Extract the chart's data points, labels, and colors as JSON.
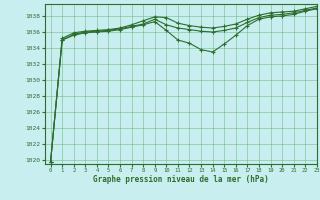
{
  "xlabel": "Graphe pression niveau de la mer (hPa)",
  "background_color": "#c8eef0",
  "grid_color": "#5aaa6e",
  "line_color": "#2d6e2d",
  "marker_color": "#2d6e2d",
  "ylim": [
    1019.5,
    1039.5
  ],
  "xlim": [
    -0.5,
    23
  ],
  "yticks": [
    1020,
    1022,
    1024,
    1026,
    1028,
    1030,
    1032,
    1034,
    1036,
    1038
  ],
  "xticks": [
    0,
    1,
    2,
    3,
    4,
    5,
    6,
    7,
    8,
    9,
    10,
    11,
    12,
    13,
    14,
    15,
    16,
    17,
    18,
    19,
    20,
    21,
    22,
    23
  ],
  "hours": [
    0,
    1,
    2,
    3,
    4,
    5,
    6,
    7,
    8,
    9,
    10,
    11,
    12,
    13,
    14,
    15,
    16,
    17,
    18,
    19,
    20,
    21,
    22,
    23
  ],
  "pressure_top": [
    1019.8,
    1035.2,
    1035.9,
    1036.1,
    1036.2,
    1036.3,
    1036.5,
    1036.9,
    1037.4,
    1037.9,
    1037.8,
    1037.1,
    1036.8,
    1036.6,
    1036.5,
    1036.7,
    1037.0,
    1037.6,
    1038.1,
    1038.4,
    1038.5,
    1038.6,
    1038.9,
    1039.2
  ],
  "pressure_mid": [
    1019.8,
    1035.0,
    1035.7,
    1036.0,
    1036.1,
    1036.2,
    1036.4,
    1036.7,
    1037.0,
    1037.6,
    1036.9,
    1036.5,
    1036.3,
    1036.1,
    1036.0,
    1036.2,
    1036.5,
    1037.2,
    1037.8,
    1038.1,
    1038.2,
    1038.4,
    1038.7,
    1039.0
  ],
  "pressure_bot": [
    1019.8,
    1035.0,
    1035.6,
    1035.9,
    1036.0,
    1036.1,
    1036.3,
    1036.6,
    1036.9,
    1037.3,
    1036.2,
    1035.0,
    1034.6,
    1033.8,
    1033.5,
    1034.5,
    1035.6,
    1036.8,
    1037.6,
    1037.9,
    1038.0,
    1038.2,
    1038.6,
    1038.9
  ]
}
